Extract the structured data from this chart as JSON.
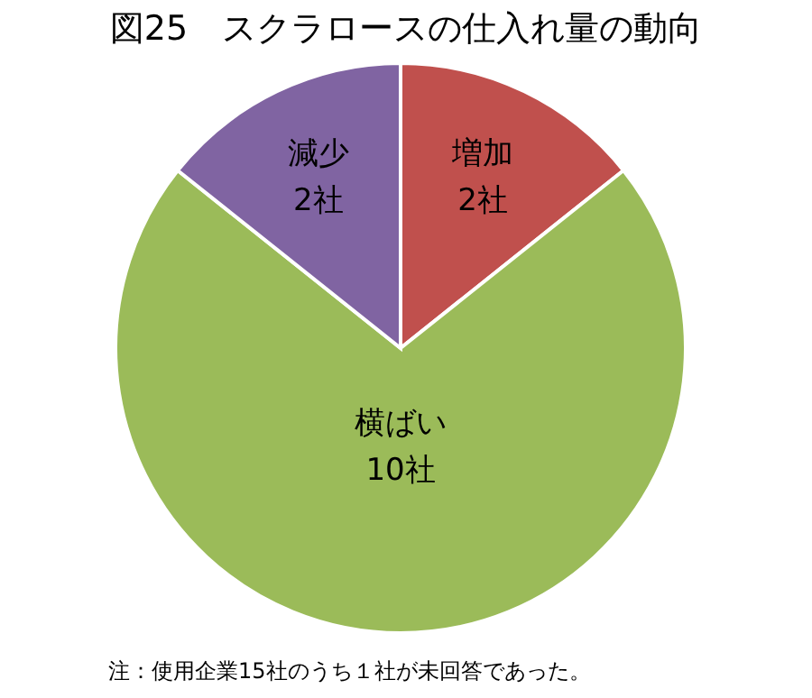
{
  "chart_data": {
    "type": "pie",
    "title": "図25　スクラロースの仕入れ量の動向",
    "categories": [
      "増加",
      "横ばい",
      "減少"
    ],
    "values": [
      2,
      10,
      2
    ],
    "value_labels": [
      "2社",
      "10社",
      "2社"
    ],
    "colors": [
      "#c0504d",
      "#9bbb59",
      "#8064a2"
    ],
    "annotations": [
      "注：使用企業15社のうち１社が未回答であった。"
    ]
  }
}
